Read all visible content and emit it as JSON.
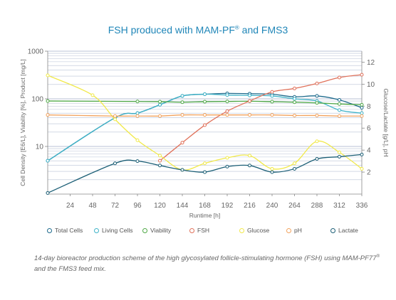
{
  "title": {
    "text": "FSH produced with MAM-PF",
    "sup": "®",
    "tail": " and FMS3"
  },
  "caption": {
    "part1": "14-day bioreactor production scheme of the high glycosylated follicle-stimulating hormone (FSH) using MAM-PF77",
    "sup": "®",
    "part2": " and the FMS3 feed mix."
  },
  "colors": {
    "total_cells": "#1d6a8c",
    "living_cells": "#3fb3c8",
    "viability": "#4ea845",
    "fsh": "#e0715a",
    "glucose": "#f1e94a",
    "ph": "#f2a35e",
    "lactate": "#1c5f76",
    "grid": "#b9c2d6",
    "axis": "#888888"
  },
  "chart_data": {
    "type": "line",
    "title": "FSH produced with MAM-PF® and FMS3",
    "xlabel": "Runtime [h]",
    "ylabel_left": "Cell Density [E6/L], Viability [%], Product [mg/L]",
    "ylabel_right": "Glucose/Lactate [g/L], pH",
    "x_ticks": [
      24,
      48,
      72,
      96,
      120,
      144,
      168,
      192,
      216,
      240,
      264,
      288,
      312,
      336
    ],
    "xlim": [
      0,
      336
    ],
    "y_left": {
      "scale": "log",
      "lim": [
        1,
        1000
      ],
      "ticks": [
        10,
        100,
        1000
      ],
      "tick_labels": [
        "10",
        "100",
        "1000"
      ]
    },
    "y_right": {
      "scale": "linear",
      "lim": [
        0,
        13
      ],
      "ticks": [
        2,
        4,
        6,
        8,
        10,
        12
      ]
    },
    "grid": true,
    "legend_position": "bottom",
    "series": [
      {
        "name": "Total Cells",
        "axis": "left",
        "color_key": "total_cells",
        "x": [
          0,
          72,
          96,
          120,
          144,
          168,
          192,
          216,
          240,
          264,
          288,
          312,
          336
        ],
        "y": [
          5,
          40,
          50,
          75,
          115,
          125,
          130,
          128,
          125,
          110,
          115,
          95,
          65
        ]
      },
      {
        "name": "Living Cells",
        "axis": "left",
        "color_key": "living_cells",
        "x": [
          0,
          72,
          96,
          120,
          144,
          168,
          192,
          216,
          240,
          264,
          288,
          312,
          336
        ],
        "y": [
          5,
          40,
          50,
          75,
          115,
          125,
          120,
          118,
          115,
          100,
          90,
          58,
          50
        ]
      },
      {
        "name": "Viability",
        "axis": "left",
        "color_key": "viability",
        "x": [
          0,
          96,
          120,
          144,
          168,
          192,
          216,
          240,
          264,
          288,
          312,
          336
        ],
        "y": [
          90,
          88,
          87,
          85,
          87,
          88,
          89,
          87,
          85,
          82,
          78,
          75
        ]
      },
      {
        "name": "FSH",
        "axis": "left",
        "color_key": "fsh",
        "x": [
          120,
          144,
          168,
          192,
          216,
          240,
          264,
          288,
          312,
          336
        ],
        "y": [
          5,
          12,
          28,
          55,
          90,
          140,
          165,
          210,
          280,
          320
        ]
      },
      {
        "name": "Glucose",
        "axis": "right",
        "color_key": "glucose",
        "x": [
          0,
          48,
          72,
          96,
          120,
          144,
          168,
          192,
          216,
          240,
          264,
          288,
          312,
          336
        ],
        "y": [
          10.8,
          9,
          6.8,
          4.9,
          3.5,
          2.2,
          2.8,
          3.3,
          3.5,
          2.3,
          2.8,
          4.8,
          3.8,
          2.3
        ]
      },
      {
        "name": "pH",
        "axis": "right",
        "color_key": "ph",
        "x": [
          0,
          72,
          96,
          120,
          144,
          168,
          192,
          216,
          240,
          264,
          288,
          312,
          336
        ],
        "y": [
          7.2,
          7.1,
          7.1,
          7.1,
          7.2,
          7.2,
          7.2,
          7.2,
          7.2,
          7.15,
          7.15,
          7.1,
          7.1
        ]
      },
      {
        "name": "Lactate",
        "axis": "right",
        "color_key": "lactate",
        "x": [
          0,
          72,
          96,
          120,
          144,
          168,
          192,
          216,
          240,
          264,
          288,
          312,
          336
        ],
        "y": [
          0.1,
          2.8,
          3.0,
          2.6,
          2.2,
          2.0,
          2.5,
          2.6,
          2.0,
          2.3,
          3.2,
          3.4,
          3.6
        ]
      }
    ]
  },
  "legend": [
    {
      "label": "Total Cells",
      "color_key": "total_cells"
    },
    {
      "label": "Living Cells",
      "color_key": "living_cells"
    },
    {
      "label": "Viability",
      "color_key": "viability"
    },
    {
      "label": "FSH",
      "color_key": "fsh"
    },
    {
      "label": "Glucose",
      "color_key": "glucose"
    },
    {
      "label": "pH",
      "color_key": "ph"
    },
    {
      "label": "Lactate",
      "color_key": "lactate"
    }
  ]
}
